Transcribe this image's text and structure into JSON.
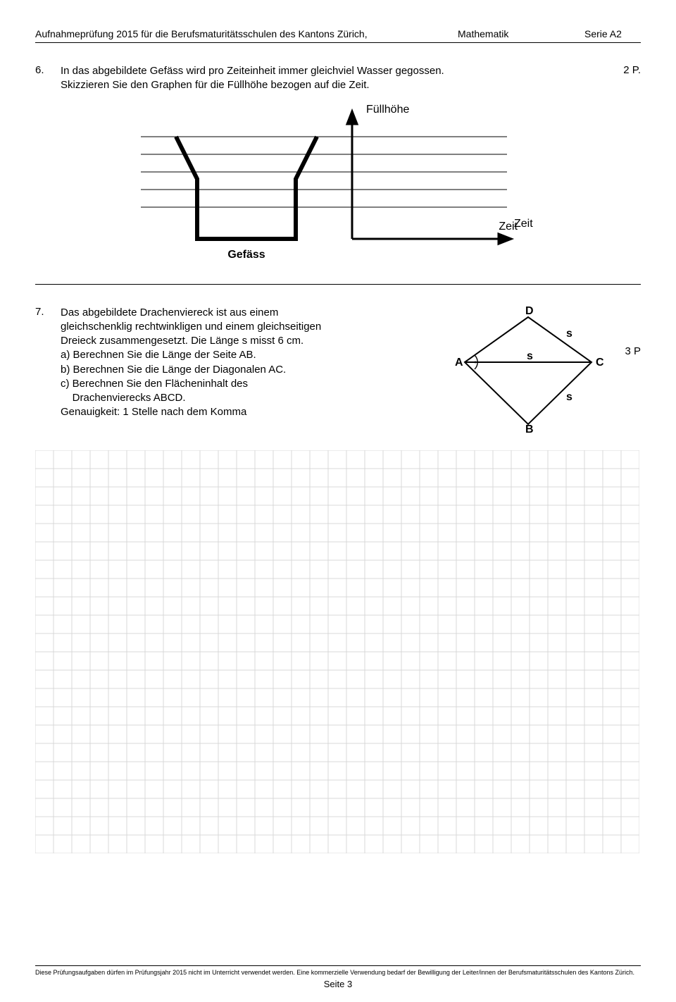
{
  "header": {
    "left": "Aufnahmeprüfung 2015 für die Berufsmaturitätsschulen des Kantons Zürich,",
    "mid": "Mathematik",
    "right": "Serie A2"
  },
  "task6": {
    "num": "6.",
    "text_l1": "In das abgebildete Gefäss wird pro Zeiteinheit immer gleichviel Wasser gegossen.",
    "text_l2": "Skizzieren Sie den Graphen für die Füllhöhe bezogen auf die Zeit.",
    "points": "2 P.",
    "labels": {
      "yaxis": "Füllhöhe",
      "xaxis": "Zeit",
      "vessel": "Gefäss"
    }
  },
  "task7": {
    "num": "7.",
    "l1": "Das abgebildete Drachenviereck ist aus einem",
    "l2": "gleichschenklig rechtwinkligen und einem gleichseitigen",
    "l3": "Dreieck zusammengesetzt.  Die Länge s misst 6 cm.",
    "la": "a) Berechnen Sie die Länge der Seite AB.",
    "lb": "b) Berechnen Sie die Länge der Diagonalen AC.",
    "lc": "c) Berechnen Sie den Flächeninhalt des",
    "lc2": "    Drachenvierecks ABCD.",
    "lg": "Genauigkeit:  1  Stelle nach dem Komma",
    "points": "3 P",
    "labels": {
      "A": "A",
      "B": "B",
      "C": "C",
      "D": "D",
      "s": "s"
    }
  },
  "grid": {
    "cols": 33,
    "rows": 22,
    "cell": 26,
    "stroke": "#d9d9d9"
  },
  "footer": {
    "text": "Diese Prüfungsaufgaben dürfen im Prüfungsjahr 2015 nicht im Unterricht verwendet werden. Eine kommerzielle Verwendung bedarf der Bewilligung der Leiter/innen der Berufsmaturitätsschulen des Kantons Zürich.",
    "page": "Seite 3"
  }
}
